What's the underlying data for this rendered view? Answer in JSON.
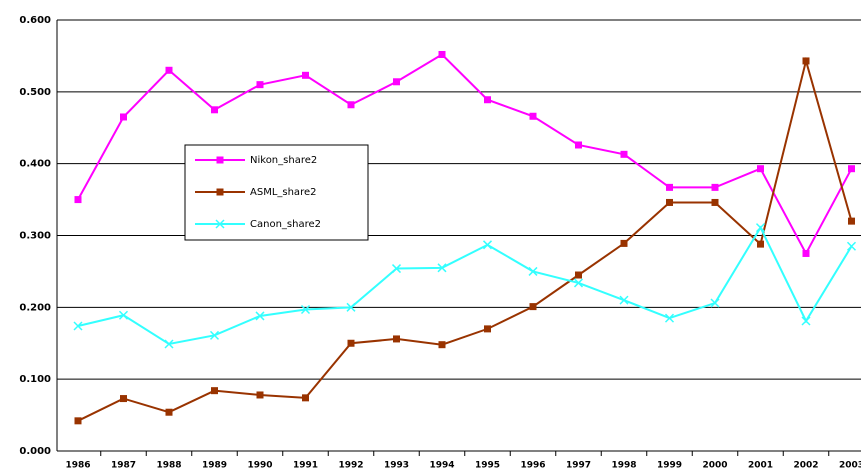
{
  "chart_data": {
    "type": "line",
    "categories": [
      "1986",
      "1987",
      "1988",
      "1989",
      "1990",
      "1991",
      "1992",
      "1993",
      "1994",
      "1995",
      "1996",
      "1997",
      "1998",
      "1999",
      "2000",
      "2001",
      "2002",
      "2003"
    ],
    "series": [
      {
        "name": "Nikon_share2",
        "color": "#ff00ff",
        "marker": "square",
        "values": [
          0.35,
          0.465,
          0.53,
          0.475,
          0.51,
          0.523,
          0.482,
          0.514,
          0.552,
          0.489,
          0.466,
          0.426,
          0.413,
          0.367,
          0.367,
          0.393,
          0.275,
          0.393
        ]
      },
      {
        "name": "ASML_share2",
        "color": "#993300",
        "marker": "square",
        "values": [
          0.042,
          0.073,
          0.054,
          0.084,
          0.078,
          0.074,
          0.15,
          0.156,
          0.148,
          0.17,
          0.201,
          0.245,
          0.289,
          0.346,
          0.346,
          0.288,
          0.543,
          0.32
        ]
      },
      {
        "name": "Canon_share2",
        "color": "#33ffff",
        "marker": "x",
        "values": [
          0.174,
          0.189,
          0.149,
          0.161,
          0.188,
          0.197,
          0.2,
          0.254,
          0.255,
          0.287,
          0.25,
          0.234,
          0.21,
          0.185,
          0.206,
          0.311,
          0.181,
          0.285
        ]
      }
    ],
    "ylim": [
      0,
      0.6
    ],
    "yticks": [
      {
        "value": 0,
        "label": "0.000"
      },
      {
        "value": 0.1,
        "label": "0.100"
      },
      {
        "value": 0.2,
        "label": "0.200"
      },
      {
        "value": 0.3,
        "label": "0.300"
      },
      {
        "value": 0.4,
        "label": "0.400"
      },
      {
        "value": 0.5,
        "label": "0.500"
      },
      {
        "value": 0.6,
        "label": "0.600"
      }
    ],
    "grid": true
  }
}
